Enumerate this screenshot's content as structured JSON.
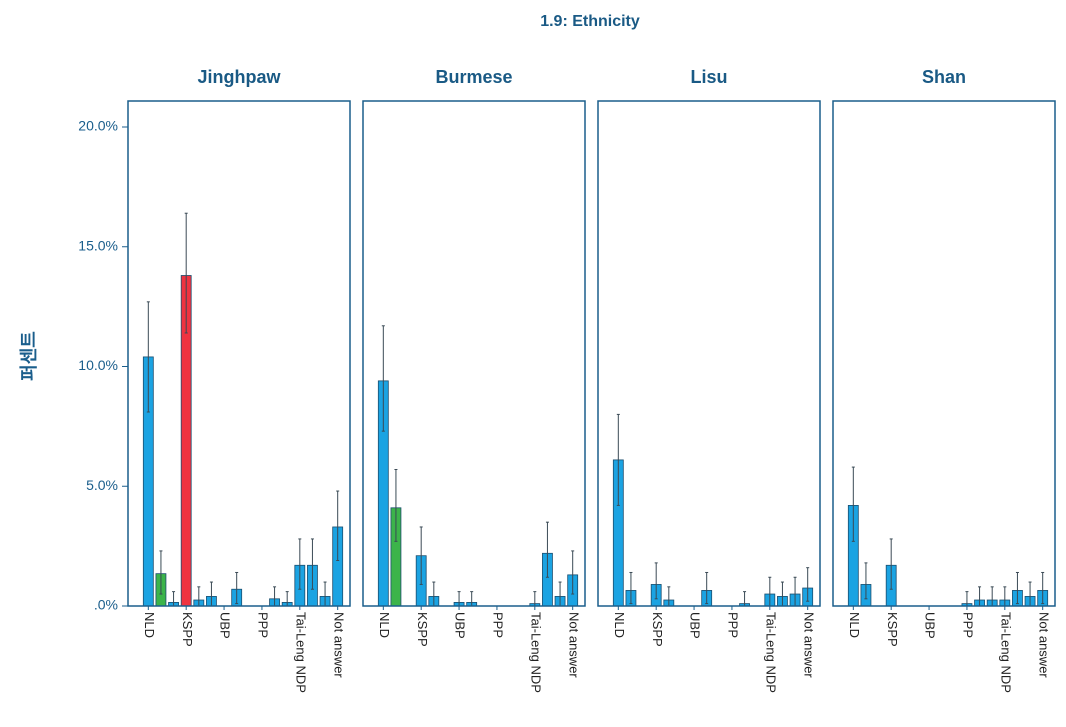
{
  "chart_data": {
    "type": "bar",
    "title": "1.9: Ethnicity",
    "ylabel": "퍼센트",
    "categories": [
      "NLD",
      null,
      null,
      "KSPP",
      null,
      null,
      "UBP",
      null,
      null,
      "PPP",
      null,
      null,
      "Tai-Leng NDP",
      null,
      null,
      "Not answer"
    ],
    "ylim": [
      0,
      20
    ],
    "yticks": [
      {
        "value": 0,
        "label": ".0%"
      },
      {
        "value": 5,
        "label": "5.0%"
      },
      {
        "value": 10,
        "label": "10.0%"
      },
      {
        "value": 15,
        "label": "15.0%"
      },
      {
        "value": 20,
        "label": "20.0%"
      }
    ],
    "panels": [
      {
        "name": "Jinghpaw",
        "values": [
          10.4,
          1.35,
          0.15,
          13.8,
          0.25,
          0.4,
          0,
          0.7,
          0,
          0,
          0.3,
          0.15,
          1.7,
          1.7,
          0.4,
          3.3
        ],
        "errors_low": [
          8.1,
          0.5,
          0,
          11.4,
          0,
          0,
          null,
          0.1,
          null,
          null,
          0,
          0,
          0.7,
          0.7,
          0,
          1.9
        ],
        "errors_high": [
          12.7,
          2.3,
          0.6,
          16.4,
          0.8,
          1.0,
          null,
          1.4,
          null,
          null,
          0.8,
          0.6,
          2.8,
          2.8,
          1.0,
          4.8
        ],
        "colors": [
          "#1ba3e2",
          "#3cb44a",
          "#1ba3e2",
          "#ef3340",
          "#1ba3e2",
          "#1ba3e2",
          "#1ba3e2",
          "#1ba3e2",
          "#1ba3e2",
          "#1ba3e2",
          "#1ba3e2",
          "#1ba3e2",
          "#1ba3e2",
          "#1ba3e2",
          "#1ba3e2",
          "#1ba3e2"
        ]
      },
      {
        "name": "Burmese",
        "values": [
          9.4,
          4.1,
          0,
          2.1,
          0.4,
          0,
          0.15,
          0.15,
          0,
          0,
          0,
          0,
          0.1,
          2.2,
          0.4,
          1.3
        ],
        "errors_low": [
          7.3,
          2.7,
          null,
          0.9,
          0,
          null,
          0,
          0,
          null,
          null,
          null,
          null,
          0,
          1.2,
          0,
          0.5
        ],
        "errors_high": [
          11.7,
          5.7,
          null,
          3.3,
          1.0,
          null,
          0.6,
          0.6,
          null,
          null,
          null,
          null,
          0.6,
          3.5,
          1.0,
          2.3
        ],
        "colors": [
          "#1ba3e2",
          "#3cb44a",
          "#1ba3e2",
          "#1ba3e2",
          "#1ba3e2",
          "#1ba3e2",
          "#1ba3e2",
          "#1ba3e2",
          "#1ba3e2",
          "#1ba3e2",
          "#1ba3e2",
          "#1ba3e2",
          "#1ba3e2",
          "#1ba3e2",
          "#1ba3e2",
          "#1ba3e2"
        ]
      },
      {
        "name": "Lisu",
        "values": [
          6.1,
          0.65,
          0,
          0.9,
          0.25,
          0,
          0,
          0.65,
          0,
          0,
          0.1,
          0,
          0.5,
          0.4,
          0.5,
          0.75
        ],
        "errors_low": [
          4.2,
          0.1,
          null,
          0.3,
          0,
          null,
          null,
          0.1,
          null,
          null,
          0,
          null,
          0,
          0,
          0,
          0.2
        ],
        "errors_high": [
          8.0,
          1.4,
          null,
          1.8,
          0.8,
          null,
          null,
          1.4,
          null,
          null,
          0.6,
          null,
          1.2,
          1.0,
          1.2,
          1.6
        ],
        "colors": [
          "#1ba3e2",
          "#1ba3e2",
          "#1ba3e2",
          "#1ba3e2",
          "#1ba3e2",
          "#1ba3e2",
          "#1ba3e2",
          "#1ba3e2",
          "#1ba3e2",
          "#1ba3e2",
          "#1ba3e2",
          "#1ba3e2",
          "#1ba3e2",
          "#1ba3e2",
          "#1ba3e2",
          "#1ba3e2"
        ]
      },
      {
        "name": "Shan",
        "values": [
          4.2,
          0.9,
          0,
          1.7,
          0,
          0,
          0,
          0,
          0,
          0.1,
          0.25,
          0.25,
          0.25,
          0.65,
          0.4,
          0.65
        ],
        "errors_low": [
          2.7,
          0.3,
          null,
          0.7,
          null,
          null,
          null,
          null,
          null,
          0,
          0,
          0,
          0,
          0.1,
          0,
          0.1
        ],
        "errors_high": [
          5.8,
          1.8,
          null,
          2.8,
          null,
          null,
          null,
          null,
          null,
          0.6,
          0.8,
          0.8,
          0.8,
          1.4,
          1.0,
          1.4
        ],
        "colors": [
          "#1ba3e2",
          "#1ba3e2",
          "#1ba3e2",
          "#1ba3e2",
          "#1ba3e2",
          "#1ba3e2",
          "#1ba3e2",
          "#1ba3e2",
          "#1ba3e2",
          "#1ba3e2",
          "#1ba3e2",
          "#1ba3e2",
          "#1ba3e2",
          "#1ba3e2",
          "#1ba3e2",
          "#1ba3e2"
        ]
      }
    ]
  }
}
